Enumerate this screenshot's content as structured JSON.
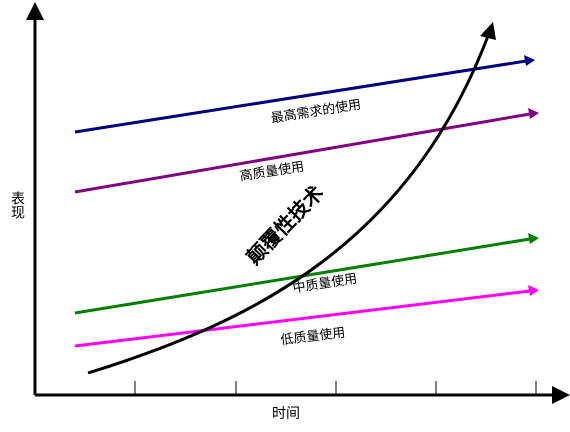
{
  "axes": {
    "y_label": "表现",
    "x_label": "时间"
  },
  "lines": [
    {
      "label": "最高需求的使用",
      "color": "#000080"
    },
    {
      "label": "高质量使用",
      "color": "#800080"
    },
    {
      "label": "中质量使用",
      "color": "#008000"
    },
    {
      "label": "低质量使用",
      "color": "#ff00ff"
    }
  ],
  "curve": {
    "label": "颠覆性技术",
    "color": "#000000"
  }
}
